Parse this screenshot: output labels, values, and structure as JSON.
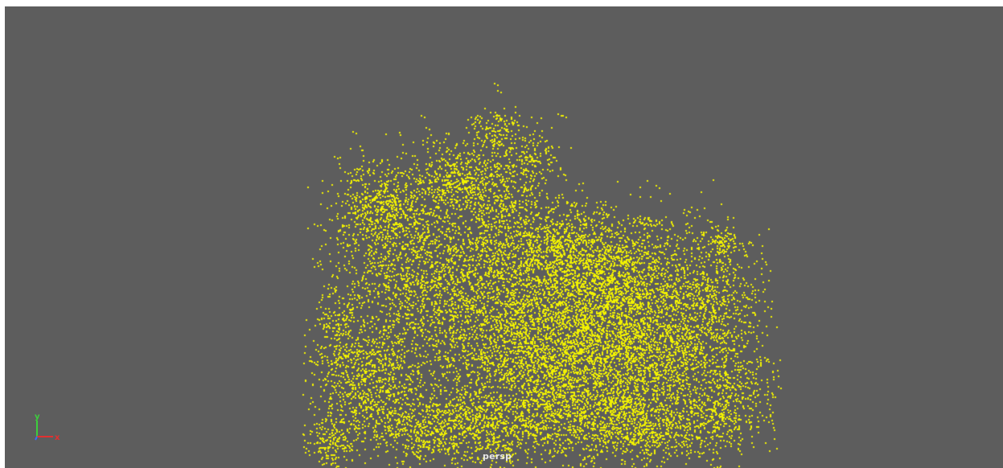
{
  "viewport": {
    "background_color": "#5d5d5d",
    "camera_label": "persp"
  },
  "point_cloud": {
    "point_color": "#f2f200"
  },
  "axis_gizmo": {
    "y_label": "y",
    "x_label": "x",
    "y_color": "#3ccf3c",
    "x_color": "#e23030",
    "z_color": "#3a6bff"
  }
}
